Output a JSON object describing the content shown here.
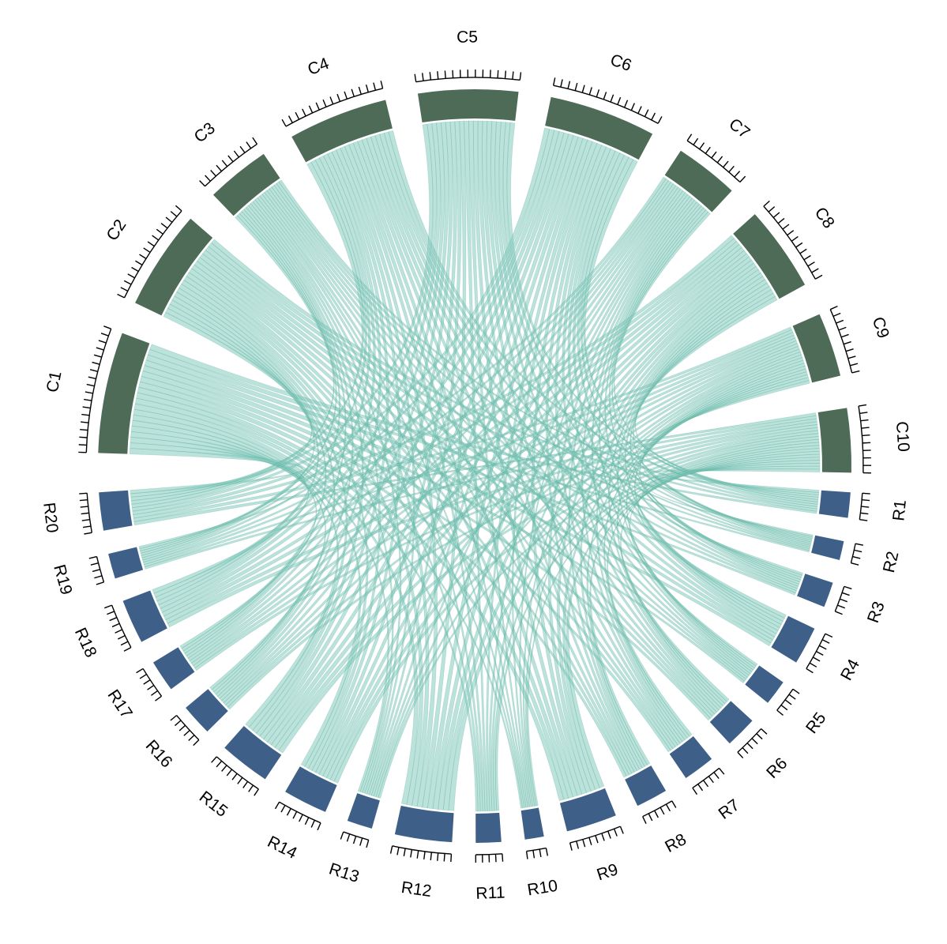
{
  "diagram": {
    "type": "chord",
    "colors": {
      "column_sector": "#4d6b57",
      "row_sector": "#3e5f88",
      "link": "#84cbbd",
      "link_overlap": "#1e8a70"
    },
    "top_group": {
      "sectors": [
        {
          "label": "C1",
          "ticks": 17
        },
        {
          "label": "C2",
          "ticks": 14
        },
        {
          "label": "C3",
          "ticks": 9
        },
        {
          "label": "C4",
          "ticks": 14
        },
        {
          "label": "C5",
          "ticks": 14
        },
        {
          "label": "C6",
          "ticks": 15
        },
        {
          "label": "C7",
          "ticks": 9
        },
        {
          "label": "C8",
          "ticks": 12
        },
        {
          "label": "C9",
          "ticks": 9
        },
        {
          "label": "C10",
          "ticks": 9
        }
      ]
    },
    "bottom_group": {
      "sectors": [
        {
          "label": "R1",
          "ticks": 4
        },
        {
          "label": "R2",
          "ticks": 3
        },
        {
          "label": "R3",
          "ticks": 4
        },
        {
          "label": "R4",
          "ticks": 6
        },
        {
          "label": "R5",
          "ticks": 4
        },
        {
          "label": "R6",
          "ticks": 5
        },
        {
          "label": "R7",
          "ticks": 5
        },
        {
          "label": "R8",
          "ticks": 5
        },
        {
          "label": "R9",
          "ticks": 8
        },
        {
          "label": "R10",
          "ticks": 3
        },
        {
          "label": "R11",
          "ticks": 4
        },
        {
          "label": "R12",
          "ticks": 9
        },
        {
          "label": "R13",
          "ticks": 4
        },
        {
          "label": "R14",
          "ticks": 7
        },
        {
          "label": "R15",
          "ticks": 8
        },
        {
          "label": "R16",
          "ticks": 5
        },
        {
          "label": "R17",
          "ticks": 5
        },
        {
          "label": "R18",
          "ticks": 7
        },
        {
          "label": "R19",
          "ticks": 4
        },
        {
          "label": "R20",
          "ticks": 6
        }
      ]
    }
  }
}
